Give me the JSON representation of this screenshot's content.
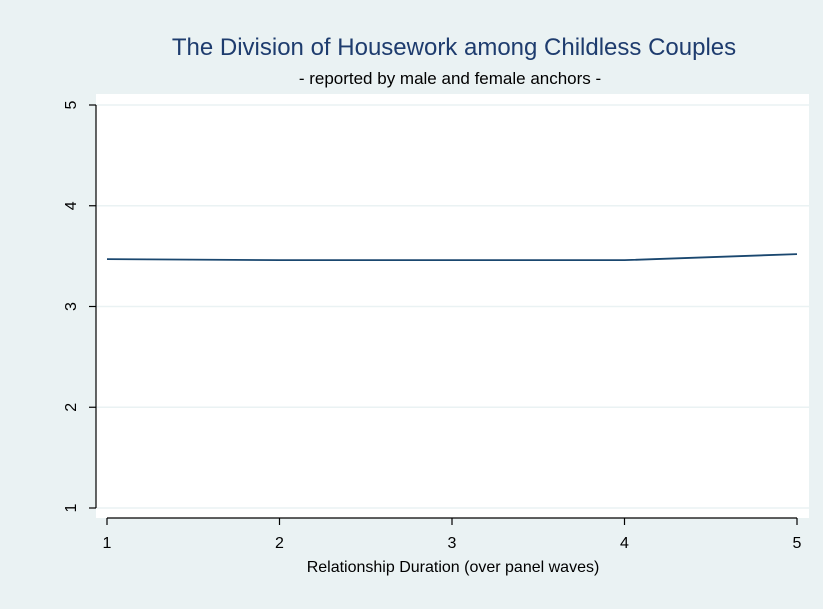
{
  "chart_data": {
    "type": "line",
    "title": "The Division of Housework among Childless Couples",
    "subtitle": "- reported by male and female anchors -",
    "xlabel": "Relationship Duration (over panel waves)",
    "ylabel": "",
    "x": [
      1,
      2,
      3,
      4,
      5
    ],
    "series": [
      {
        "values": [
          3.47,
          3.46,
          3.46,
          3.46,
          3.52
        ]
      }
    ],
    "xlim": [
      1,
      5
    ],
    "ylim": [
      1,
      5
    ],
    "xticks": [
      1,
      2,
      3,
      4,
      5
    ],
    "yticks": [
      1,
      2,
      3,
      4,
      5
    ],
    "grid": true,
    "colors": {
      "outer_background": "#eaf2f3",
      "plot_background": "#ffffff",
      "line": "#1a476f",
      "grid": "#eaf2f3",
      "axis": "#000000",
      "title": "#1e3c6e"
    }
  }
}
